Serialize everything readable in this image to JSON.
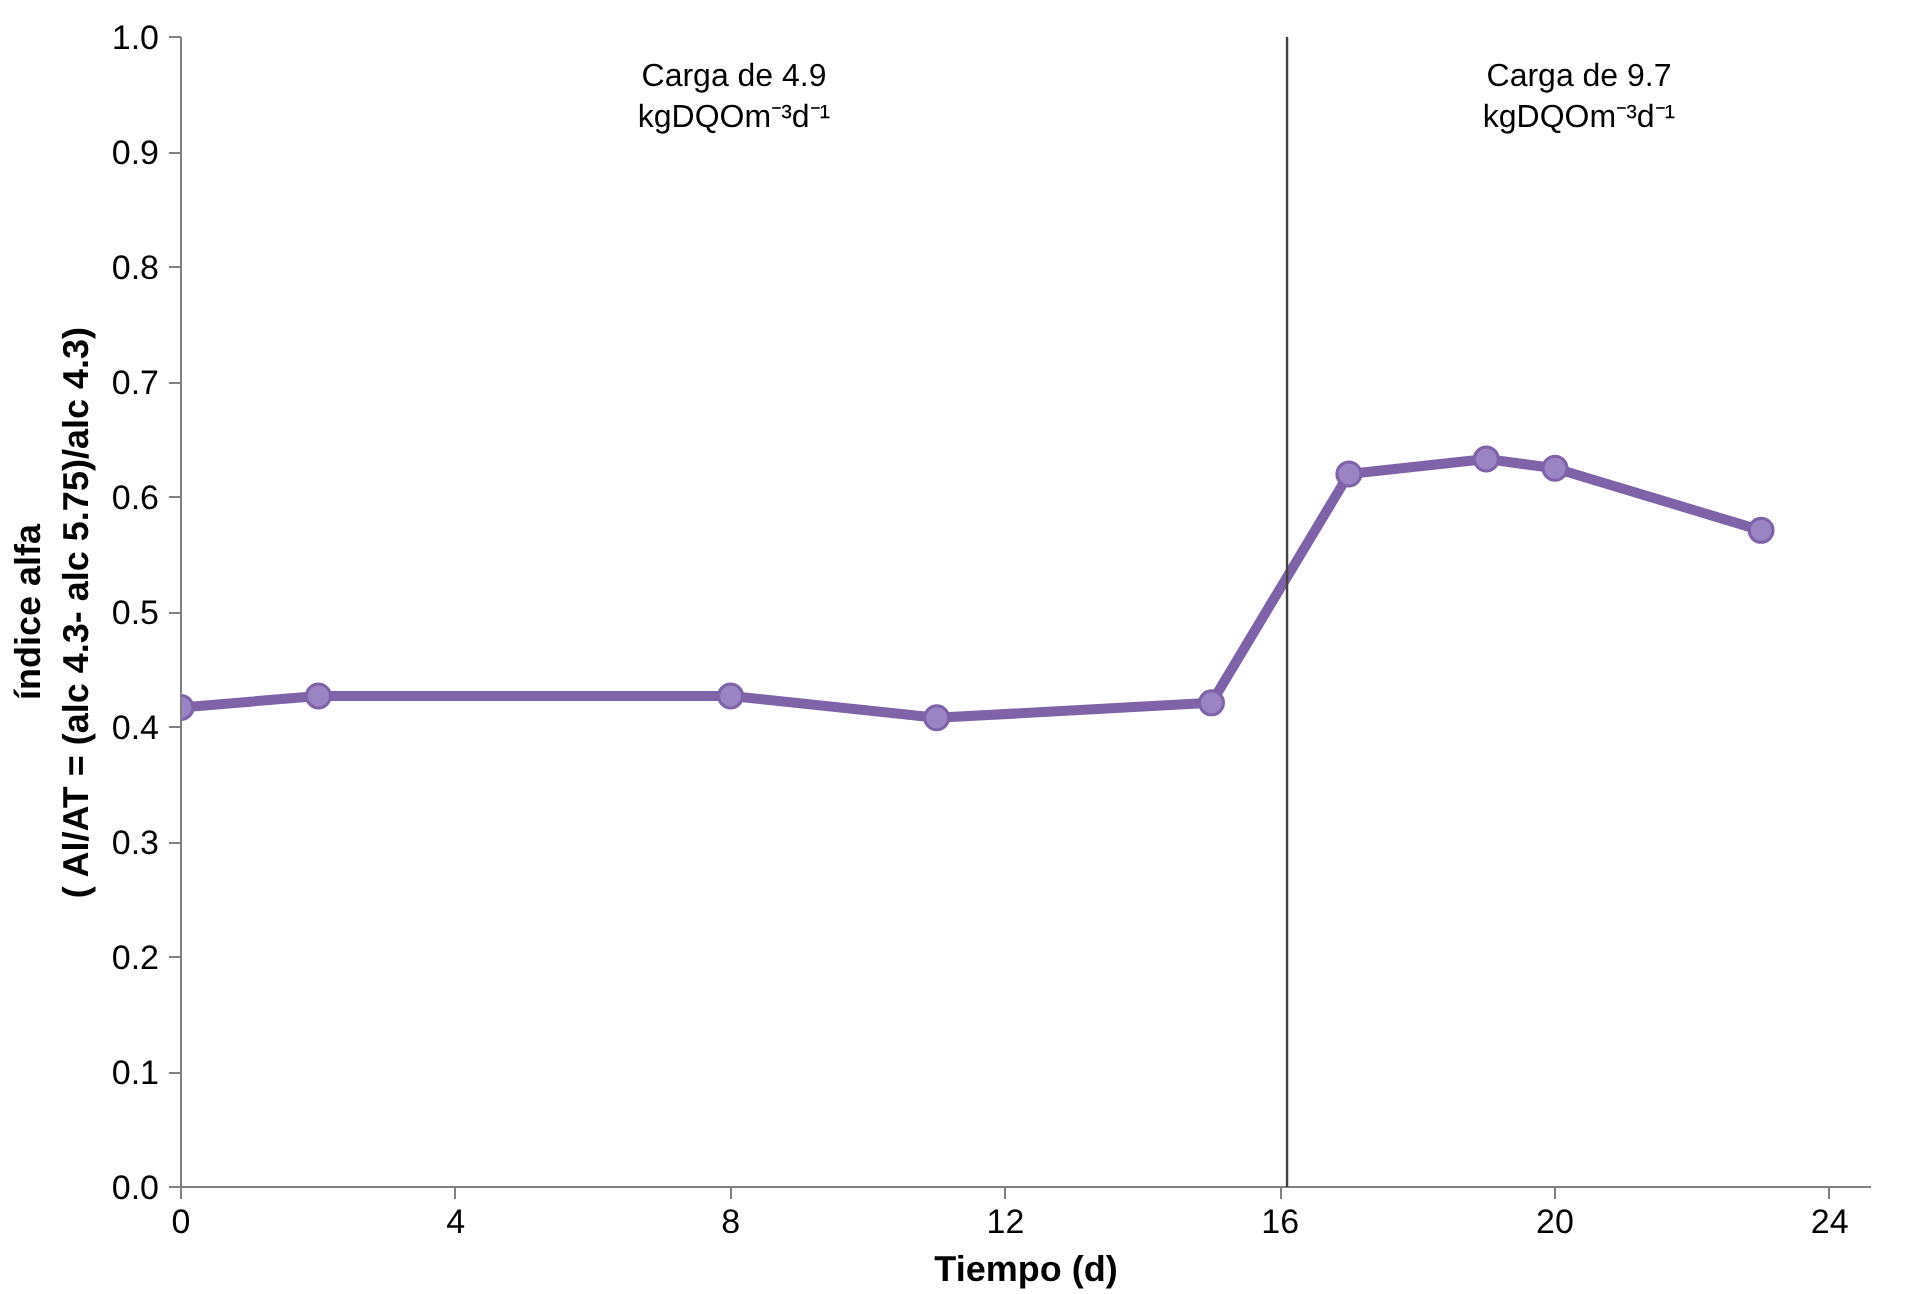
{
  "chart_data": {
    "type": "line",
    "xlabel": "Tiempo (d)",
    "ylabel": "índice alfa\n( Al/AT = (alc 4.3- alc 5.75)/alc 4.3)",
    "x": [
      0,
      2,
      8,
      11,
      15,
      17,
      19,
      20,
      23
    ],
    "series": [
      {
        "color": "#7f63a8",
        "values": [
          0.417,
          0.427,
          0.427,
          0.408,
          0.421,
          0.62,
          0.633,
          0.625,
          0.571
        ]
      }
    ],
    "marker": "circle",
    "line_style": "solid",
    "grid": false,
    "xlim": [
      0,
      24.6
    ],
    "xticks": [
      0,
      4,
      8,
      12,
      16,
      20,
      24
    ],
    "ylim": [
      0,
      1
    ],
    "yticks": [
      {
        "value": 0,
        "label": "0.0"
      },
      0.1,
      0.2,
      0.3,
      0.4,
      0.5,
      0.6,
      0.7,
      0.8,
      0.9,
      {
        "value": 1,
        "label": "1.0"
      }
    ],
    "ref_lines": [
      {
        "axis": "x",
        "value": 16.1,
        "label": null,
        "color": "#404040"
      }
    ],
    "annotations": [
      "Carga de 4.9\nkgDQOm⁻³d⁻¹",
      "Carga de 9.7\nkgDQOm⁻³d⁻¹"
    ]
  }
}
